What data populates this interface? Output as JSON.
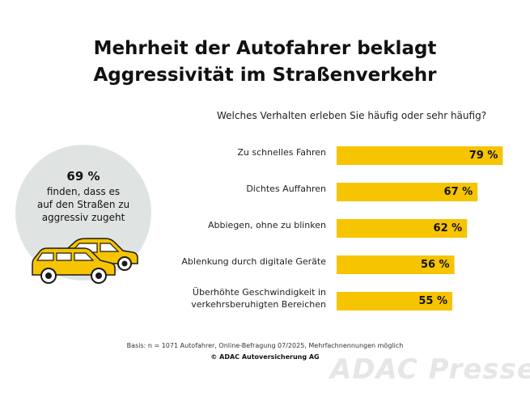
{
  "title_line1": "Mehrheit der Autofahrer beklagt",
  "title_line2": "Aggressivität im Straßenverkehr",
  "stat": {
    "value": "69 %",
    "line1": "finden, dass es",
    "line2": "auf den Straßen zu",
    "line3": "aggressiv zugeht"
  },
  "footnote": "Basis: n = 1071 Autofahrer, Online-Befragung 07/2025, Mehrfachnennungen möglich",
  "copyright": "© ADAC Autoversicherung AG",
  "watermark": "ADAC Presse",
  "colors": {
    "bar": "#f6c400",
    "circle": "#dfe4e2",
    "car": "#f6c400"
  },
  "chart_data": {
    "type": "bar",
    "orientation": "horizontal",
    "title": "Welches Verhalten erleben Sie häufig oder sehr häufig?",
    "categories": [
      [
        "Zu schnelles Fahren"
      ],
      [
        "Dichtes Auffahren"
      ],
      [
        "Abbiegen, ohne zu blinken"
      ],
      [
        "Ablenkung durch digitale Geräte"
      ],
      [
        "Überhöhte Geschwindigkeit in",
        "verkehrsberuhigten Bereichen"
      ]
    ],
    "values": [
      79,
      67,
      62,
      56,
      55
    ],
    "value_labels": [
      "79 %",
      "67 %",
      "62 %",
      "56 %",
      "55 %"
    ],
    "unit": "%",
    "grid": false,
    "legend": false
  }
}
